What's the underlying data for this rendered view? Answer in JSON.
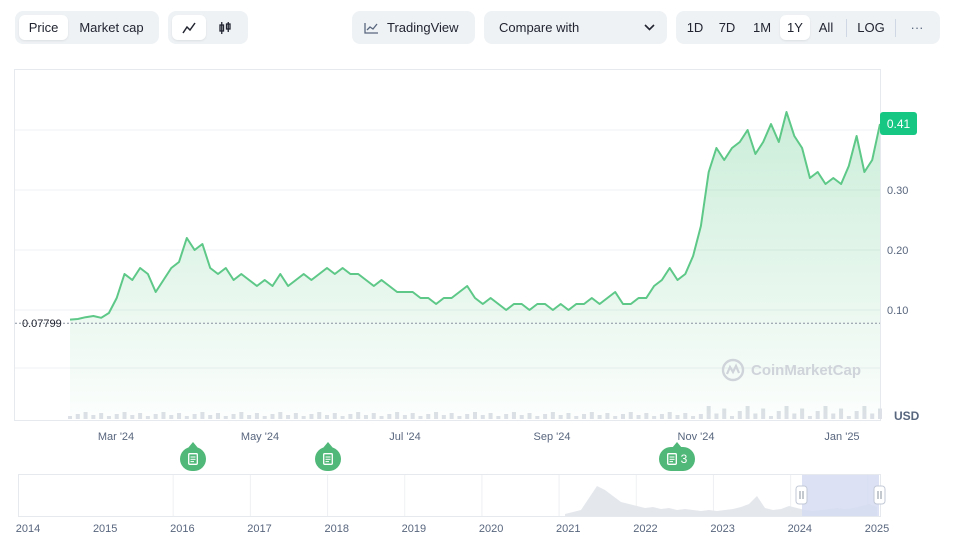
{
  "toolbar": {
    "view_tabs": [
      {
        "label": "Price",
        "active": true
      },
      {
        "label": "Market cap",
        "active": false
      }
    ],
    "chart_type_icons": [
      {
        "icon": "line-chart-icon",
        "active": true
      },
      {
        "icon": "candlestick-icon",
        "active": false
      }
    ],
    "tradingview_label": "TradingView",
    "compare_label": "Compare with",
    "ranges": [
      {
        "label": "1D",
        "active": false
      },
      {
        "label": "7D",
        "active": false
      },
      {
        "label": "1M",
        "active": false
      },
      {
        "label": "1Y",
        "active": true
      },
      {
        "label": "All",
        "active": false
      }
    ],
    "log_label": "LOG",
    "more_label": "···"
  },
  "chart": {
    "current_price_label": "0.41",
    "start_price_label": "0.07799",
    "currency_label": "USD",
    "watermark": "CoinMarketCap",
    "event_markers": [
      {
        "label": "",
        "month": "Apr '24"
      },
      {
        "label": "",
        "month": "Jun '24"
      },
      {
        "label": "3",
        "month": "Nov '24"
      }
    ]
  },
  "chart_data": {
    "type": "area",
    "ylim": [
      0.0,
      0.5
    ],
    "y_ticks": [
      0.1,
      0.2,
      0.3
    ],
    "y_tick_labels": [
      "0.10",
      "0.20",
      "0.30"
    ],
    "x_tick_labels": [
      "Mar '24",
      "May '24",
      "Jul '24",
      "Sep '24",
      "Nov '24",
      "Jan '25"
    ],
    "line_color": "#5dc887",
    "baseline": 0.078,
    "series": [
      {
        "values": [
          0.084,
          0.085,
          0.088,
          0.09,
          0.087,
          0.095,
          0.12,
          0.16,
          0.15,
          0.17,
          0.16,
          0.13,
          0.15,
          0.17,
          0.18,
          0.22,
          0.2,
          0.21,
          0.17,
          0.16,
          0.17,
          0.15,
          0.16,
          0.15,
          0.14,
          0.15,
          0.14,
          0.16,
          0.14,
          0.15,
          0.16,
          0.15,
          0.16,
          0.17,
          0.16,
          0.17,
          0.16,
          0.16,
          0.15,
          0.14,
          0.15,
          0.14,
          0.13,
          0.13,
          0.13,
          0.12,
          0.12,
          0.11,
          0.12,
          0.12,
          0.13,
          0.14,
          0.12,
          0.11,
          0.12,
          0.11,
          0.1,
          0.11,
          0.11,
          0.1,
          0.11,
          0.11,
          0.1,
          0.11,
          0.1,
          0.11,
          0.11,
          0.12,
          0.11,
          0.12,
          0.13,
          0.11,
          0.11,
          0.12,
          0.12,
          0.14,
          0.15,
          0.17,
          0.15,
          0.16,
          0.19,
          0.24,
          0.33,
          0.37,
          0.35,
          0.37,
          0.38,
          0.4,
          0.36,
          0.38,
          0.41,
          0.38,
          0.43,
          0.39,
          0.37,
          0.32,
          0.33,
          0.31,
          0.32,
          0.31,
          0.34,
          0.39,
          0.33,
          0.35,
          0.41
        ]
      }
    ],
    "navigator": {
      "x_labels": [
        "2014",
        "2015",
        "2016",
        "2017",
        "2018",
        "2019",
        "2020",
        "2021",
        "2022",
        "2023",
        "2024",
        "2025"
      ],
      "selected_range": [
        "2024",
        "2025"
      ]
    }
  }
}
